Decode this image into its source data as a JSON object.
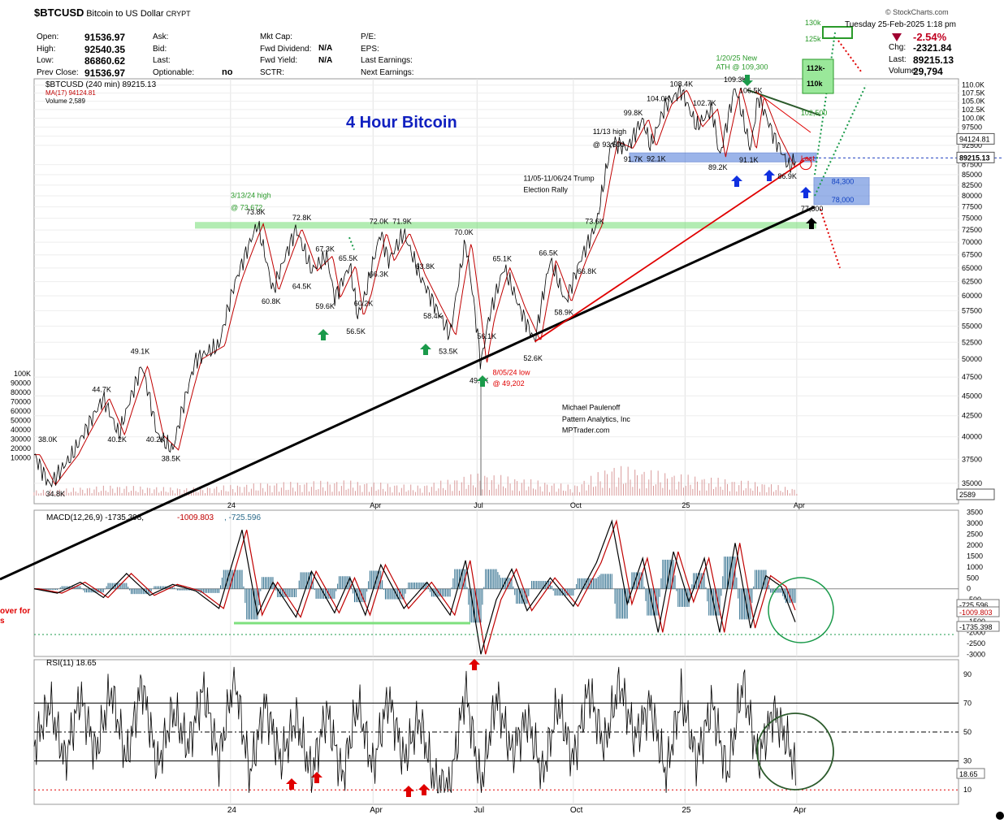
{
  "header": {
    "symbol": "$BTCUSD",
    "name": "Bitcoin to US Dollar",
    "exchange": "CRYPT",
    "copyright": "© StockCharts.com",
    "date": "Tuesday 25-Feb-2025 1:18 pm",
    "change_pct": "-2.54%",
    "fields": [
      {
        "label": "Open:",
        "value": "91536.97"
      },
      {
        "label": "High:",
        "value": "92540.35"
      },
      {
        "label": "Low:",
        "value": "86860.62"
      },
      {
        "label": "Prev Close:",
        "value": "91536.97"
      }
    ],
    "mid_labels": [
      "Ask:",
      "Bid:",
      "Last:",
      "Optionable:"
    ],
    "optionable": "no",
    "col3": [
      {
        "label": "Mkt Cap:",
        "value": ""
      },
      {
        "label": "Fwd Dividend:",
        "value": "N/A"
      },
      {
        "label": "Fwd Yield:",
        "value": "N/A"
      },
      {
        "label": "SCTR:",
        "value": ""
      }
    ],
    "col4": [
      "P/E:",
      "EPS:",
      "Last Earnings:",
      "Next Earnings:"
    ],
    "right": [
      {
        "label": "Chg:",
        "value": "-2321.84"
      },
      {
        "label": "Last:",
        "value": "89215.13"
      },
      {
        "label": "Volume:",
        "value": "29,794"
      }
    ]
  },
  "chart_data": [
    {
      "type": "line",
      "panel": "price",
      "title": "4 Hour Bitcoin",
      "legend": [
        "$BTCUSD (240 min) 89215.13",
        "MA(17) 94124.81",
        "Volume 2,589"
      ],
      "colors": {
        "price": "#000000",
        "ma": "#c00000",
        "title": "#1020c0",
        "trend": "#000000",
        "redtrend": "#e00000",
        "greenband": "#7ee07e",
        "blueband": "#4a78d8"
      },
      "scale": "log",
      "ylim": [
        33000,
        112000
      ],
      "y_ticks": [
        35000,
        37500,
        40000,
        42500,
        45000,
        47500,
        50000,
        52500,
        55000,
        57500,
        60000,
        62500,
        65000,
        67500,
        70000,
        72500,
        75000,
        77500,
        80000,
        82500,
        85000,
        87500,
        92500,
        95000,
        97500,
        100000,
        102500,
        105000,
        107500,
        110000
      ],
      "y_tick_labels": [
        "35000",
        "37500",
        "40000",
        "42500",
        "45000",
        "47500",
        "50000",
        "52500",
        "55000",
        "57500",
        "60000",
        "62500",
        "65000",
        "67500",
        "70000",
        "72500",
        "75000",
        "77500",
        "80000",
        "82500",
        "85000",
        "87500",
        "92500",
        "95000",
        "97500",
        "100.0K",
        "102.5K",
        "105.0K",
        "107.5K",
        "110.0K"
      ],
      "x_ticks": [
        "24",
        "Apr",
        "Jul",
        "Oct",
        "25",
        "Apr"
      ],
      "price_points": [
        [
          0,
          38000
        ],
        [
          4,
          34800
        ],
        [
          10,
          38000
        ],
        [
          18,
          44700
        ],
        [
          22,
          40200
        ],
        [
          28,
          49100
        ],
        [
          32,
          40200
        ],
        [
          36,
          38500
        ],
        [
          42,
          50000
        ],
        [
          48,
          52000
        ],
        [
          52,
          62000
        ],
        [
          58,
          73800
        ],
        [
          62,
          60800
        ],
        [
          68,
          72800
        ],
        [
          72,
          64500
        ],
        [
          76,
          67300
        ],
        [
          78,
          59600
        ],
        [
          82,
          65500
        ],
        [
          84,
          56500
        ],
        [
          86,
          60200
        ],
        [
          90,
          72000
        ],
        [
          92,
          66300
        ],
        [
          96,
          71900
        ],
        [
          100,
          63800
        ],
        [
          104,
          58400
        ],
        [
          108,
          53500
        ],
        [
          112,
          70000
        ],
        [
          116,
          49200
        ],
        [
          118,
          56100
        ],
        [
          122,
          65100
        ],
        [
          126,
          58000
        ],
        [
          130,
          52600
        ],
        [
          134,
          66500
        ],
        [
          138,
          58900
        ],
        [
          142,
          66800
        ],
        [
          146,
          73600
        ],
        [
          150,
          93500
        ],
        [
          154,
          91700
        ],
        [
          158,
          99800
        ],
        [
          160,
          92100
        ],
        [
          164,
          104000
        ],
        [
          168,
          108400
        ],
        [
          172,
          97500
        ],
        [
          176,
          102700
        ],
        [
          178,
          89200
        ],
        [
          182,
          109300
        ],
        [
          186,
          91100
        ],
        [
          188,
          106500
        ],
        [
          192,
          95000
        ],
        [
          196,
          86900
        ],
        [
          198,
          89215
        ]
      ],
      "ma_last": 94124.81,
      "last": 89215.13,
      "volume_points": [
        [
          0,
          2000
        ],
        [
          20,
          4000
        ],
        [
          40,
          3000
        ],
        [
          60,
          5000
        ],
        [
          80,
          6000
        ],
        [
          100,
          4000
        ],
        [
          116,
          9000
        ],
        [
          140,
          4000
        ],
        [
          150,
          12000
        ],
        [
          170,
          8000
        ],
        [
          190,
          5000
        ],
        [
          198,
          2589
        ]
      ],
      "annotations": [
        {
          "text": "3/13/24 high",
          "t": 54,
          "p": 79500,
          "color": "#2a9a2a"
        },
        {
          "text": "@ 73,672",
          "t": 54,
          "p": 76800,
          "color": "#2a9a2a"
        },
        {
          "text": "73.8K",
          "t": 58,
          "p": 75800
        },
        {
          "text": "72.8K",
          "t": 70,
          "p": 74600
        },
        {
          "text": "72.0K",
          "t": 90,
          "p": 73800
        },
        {
          "text": "71.9K",
          "t": 96,
          "p": 73800
        },
        {
          "text": "70.0K",
          "t": 112,
          "p": 71500
        },
        {
          "text": "67.3K",
          "t": 76,
          "p": 68200
        },
        {
          "text": "65.5K",
          "t": 82,
          "p": 66400
        },
        {
          "text": "66.3K",
          "t": 90,
          "p": 63400
        },
        {
          "text": "64.5K",
          "t": 70,
          "p": 61200
        },
        {
          "text": "60.8K",
          "t": 62,
          "p": 58600
        },
        {
          "text": "59.6K",
          "t": 76,
          "p": 57800
        },
        {
          "text": "60.2K",
          "t": 86,
          "p": 58300
        },
        {
          "text": "63.8K",
          "t": 102,
          "p": 64800
        },
        {
          "text": "58.4K",
          "t": 104,
          "p": 56200
        },
        {
          "text": "65.1K",
          "t": 122,
          "p": 66300
        },
        {
          "text": "66.5K",
          "t": 134,
          "p": 67400
        },
        {
          "text": "66.8K",
          "t": 144,
          "p": 63900
        },
        {
          "text": "73.6K",
          "t": 146,
          "p": 73800
        },
        {
          "text": "58.9K",
          "t": 138,
          "p": 56800
        },
        {
          "text": "56.5K",
          "t": 84,
          "p": 53800
        },
        {
          "text": "53.5K",
          "t": 108,
          "p": 50800
        },
        {
          "text": "56.1K",
          "t": 118,
          "p": 53000
        },
        {
          "text": "52.6K",
          "t": 130,
          "p": 49800
        },
        {
          "text": "49.2K",
          "t": 116,
          "p": 46700
        },
        {
          "text": "8/05/24 low",
          "t": 122,
          "p": 47800,
          "color": "#e00000"
        },
        {
          "text": "@ 49,202",
          "t": 122,
          "p": 46300,
          "color": "#e00000"
        },
        {
          "text": "49.1K",
          "t": 28,
          "p": 50800
        },
        {
          "text": "44.7K",
          "t": 18,
          "p": 45500
        },
        {
          "text": "40.2K",
          "t": 22,
          "p": 39400
        },
        {
          "text": "40.2K",
          "t": 32,
          "p": 39400
        },
        {
          "text": "38.5K",
          "t": 36,
          "p": 37300
        },
        {
          "text": "38.0K",
          "t": 4,
          "p": 39400
        },
        {
          "text": "34.8K",
          "t": 6,
          "p": 33700
        },
        {
          "text": "11/13 high",
          "t": 148,
          "p": 95500
        },
        {
          "text": "@ 93,500",
          "t": 148,
          "p": 92000
        },
        {
          "text": "11/05-11/06/24 Trump",
          "t": 130,
          "p": 83500
        },
        {
          "text": "Election Rally",
          "t": 130,
          "p": 80800
        },
        {
          "text": "91.7K",
          "t": 156,
          "p": 88200
        },
        {
          "text": "92.1K",
          "t": 162,
          "p": 88400
        },
        {
          "text": "99.8K",
          "t": 156,
          "p": 100800
        },
        {
          "text": "104.0K",
          "t": 162,
          "p": 105000
        },
        {
          "text": "108.4K",
          "t": 168,
          "p": 109500
        },
        {
          "text": "102.7K",
          "t": 174,
          "p": 103700
        },
        {
          "text": "109.3K",
          "t": 182,
          "p": 111000
        },
        {
          "text": "106.5K",
          "t": 186,
          "p": 107500
        },
        {
          "text": "89.2K",
          "t": 178,
          "p": 86200
        },
        {
          "text": "91.1K",
          "t": 186,
          "p": 88000
        },
        {
          "text": "86.9K",
          "t": 196,
          "p": 84000
        },
        {
          "text": "1/20/25 New",
          "t": 180,
          "p": 118000,
          "color": "#2a9a2a"
        },
        {
          "text": "ATH @ 109,300",
          "t": 180,
          "p": 115000,
          "color": "#2a9a2a"
        },
        {
          "text": "102,500",
          "t": 202,
          "p": 100800,
          "color": "#2a9a2a"
        },
        {
          "text": "84,300",
          "t": 210,
          "p": 82800,
          "color": "#1040c0"
        },
        {
          "text": "78,000",
          "t": 210,
          "p": 78500,
          "color": "#1040c0"
        },
        {
          "text": "77,500",
          "t": 202,
          "p": 76500
        },
        {
          "text": "Last",
          "t": 202,
          "p": 88500,
          "color": "#e00000"
        },
        {
          "text": "Michael Paulenoff",
          "t": 140,
          "p": 43200
        },
        {
          "text": "Pattern Analytics, Inc",
          "t": 140,
          "p": 41800
        },
        {
          "text": "MPTrader.com",
          "t": 140,
          "p": 40500
        }
      ],
      "target_boxes": [
        {
          "text": "112k-",
          "value": 112000
        },
        {
          "text": "110k",
          "value": 110000
        },
        {
          "text": "130k",
          "value": 130000
        },
        {
          "text": "125k",
          "value": 125000
        }
      ],
      "right_labels": [
        {
          "text": "94124.81",
          "value": 94124.81
        },
        {
          "text": "89215.13",
          "value": 89215.13
        },
        {
          "text": "2589",
          "value": 2589
        }
      ],
      "volume_axis": [
        "100K",
        "90000",
        "80000",
        "70000",
        "60000",
        "50000",
        "40000",
        "30000",
        "20000",
        "10000"
      ]
    },
    {
      "type": "line",
      "panel": "macd",
      "legend": [
        "MACD(12,26,9)",
        "-1735.398",
        "-1009.803",
        "-725.596"
      ],
      "ylim": [
        -3100,
        3600
      ],
      "y_ticks": [
        3500,
        3000,
        2500,
        2000,
        1500,
        1000,
        500,
        0,
        -500,
        -1000,
        -1500,
        -2000,
        -2500,
        -3000
      ],
      "right_labels": [
        "-725.596",
        "-1009.803",
        "-1735.398"
      ],
      "macd_points": [
        [
          0,
          0
        ],
        [
          6,
          -200
        ],
        [
          12,
          300
        ],
        [
          18,
          -400
        ],
        [
          24,
          700
        ],
        [
          30,
          -300
        ],
        [
          36,
          200
        ],
        [
          42,
          -100
        ],
        [
          48,
          -900
        ],
        [
          54,
          2700
        ],
        [
          58,
          -1200
        ],
        [
          62,
          300
        ],
        [
          68,
          -1300
        ],
        [
          72,
          800
        ],
        [
          78,
          -1100
        ],
        [
          82,
          500
        ],
        [
          86,
          -1200
        ],
        [
          90,
          1100
        ],
        [
          96,
          -900
        ],
        [
          102,
          300
        ],
        [
          108,
          -1200
        ],
        [
          112,
          1300
        ],
        [
          116,
          -3000
        ],
        [
          120,
          -500
        ],
        [
          124,
          900
        ],
        [
          128,
          -1000
        ],
        [
          134,
          500
        ],
        [
          140,
          -800
        ],
        [
          146,
          1200
        ],
        [
          150,
          3100
        ],
        [
          154,
          -700
        ],
        [
          158,
          1400
        ],
        [
          162,
          -2000
        ],
        [
          166,
          1700
        ],
        [
          170,
          -600
        ],
        [
          174,
          1400
        ],
        [
          178,
          -2000
        ],
        [
          182,
          2100
        ],
        [
          186,
          -1800
        ],
        [
          190,
          600
        ],
        [
          194,
          100
        ],
        [
          198,
          -1700
        ]
      ],
      "signal_last": -1009.803,
      "histogram_last": -725.596
    },
    {
      "type": "line",
      "panel": "rsi",
      "legend": "RSI(11) 18.65",
      "ylim": [
        0,
        100
      ],
      "y_ticks": [
        90,
        70,
        50,
        30,
        10
      ],
      "right_label": "18.65",
      "rsi_points": [
        [
          0,
          40
        ],
        [
          4,
          70
        ],
        [
          8,
          30
        ],
        [
          12,
          75
        ],
        [
          16,
          35
        ],
        [
          20,
          80
        ],
        [
          24,
          30
        ],
        [
          28,
          85
        ],
        [
          32,
          25
        ],
        [
          36,
          65
        ],
        [
          40,
          40
        ],
        [
          44,
          80
        ],
        [
          48,
          30
        ],
        [
          52,
          90
        ],
        [
          56,
          20
        ],
        [
          60,
          70
        ],
        [
          64,
          30
        ],
        [
          68,
          60
        ],
        [
          72,
          20
        ],
        [
          76,
          65
        ],
        [
          80,
          18
        ],
        [
          84,
          70
        ],
        [
          88,
          25
        ],
        [
          92,
          75
        ],
        [
          96,
          30
        ],
        [
          100,
          60
        ],
        [
          104,
          15
        ],
        [
          108,
          12
        ],
        [
          112,
          80
        ],
        [
          116,
          12
        ],
        [
          120,
          75
        ],
        [
          124,
          35
        ],
        [
          128,
          60
        ],
        [
          132,
          20
        ],
        [
          136,
          70
        ],
        [
          140,
          30
        ],
        [
          144,
          80
        ],
        [
          148,
          40
        ],
        [
          152,
          85
        ],
        [
          156,
          45
        ],
        [
          160,
          70
        ],
        [
          164,
          20
        ],
        [
          168,
          75
        ],
        [
          172,
          30
        ],
        [
          176,
          70
        ],
        [
          180,
          20
        ],
        [
          184,
          85
        ],
        [
          188,
          30
        ],
        [
          192,
          65
        ],
        [
          196,
          40
        ],
        [
          198,
          18.65
        ]
      ]
    }
  ],
  "side_note": [
    "over for",
    "s"
  ],
  "footer_x": [
    "24",
    "Apr",
    "Jul",
    "Oct",
    "25",
    "Apr"
  ]
}
